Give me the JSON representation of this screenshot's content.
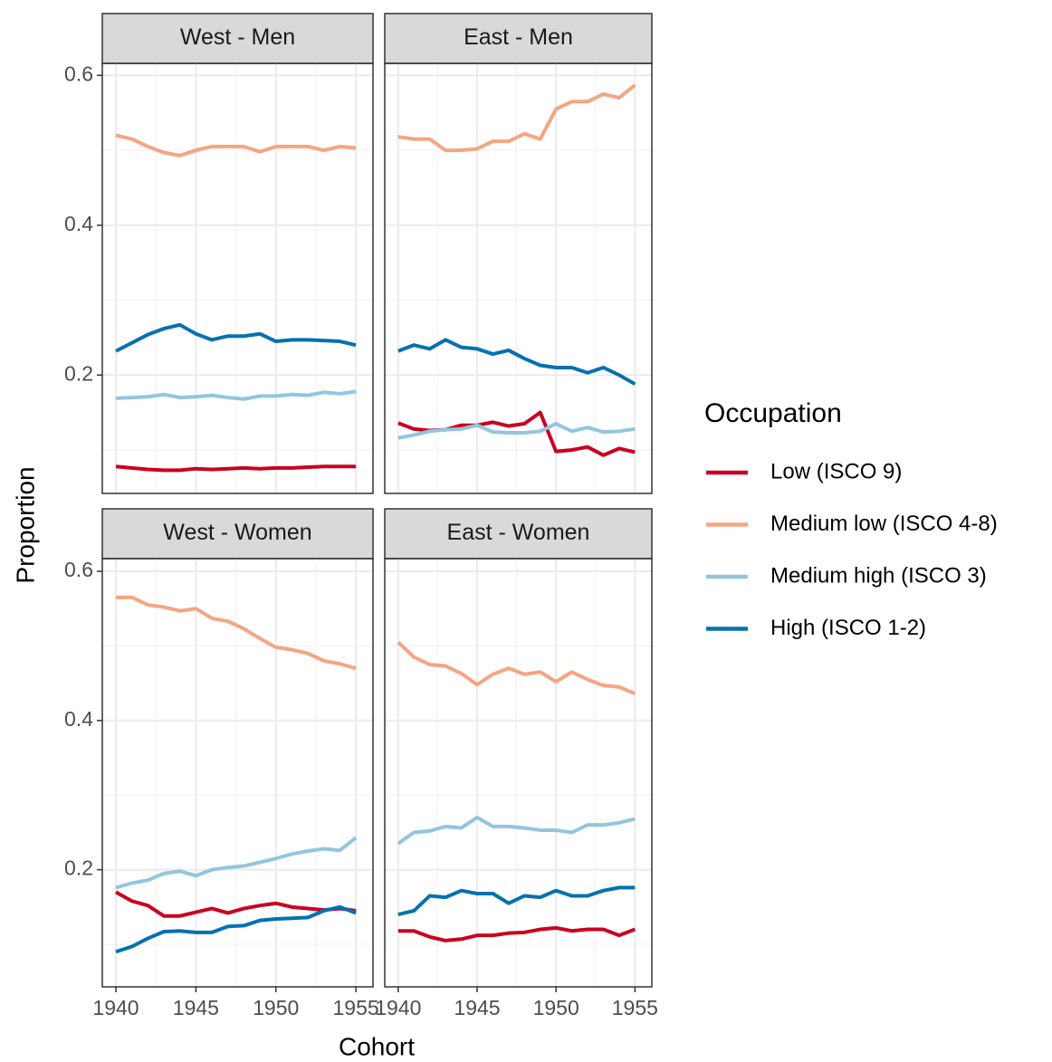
{
  "ylabel": "Proportion",
  "xlabel": "Cohort",
  "legend_title": "Occupation",
  "chart_data": [
    {
      "type": "line",
      "title": "West - Men",
      "x": [
        1940,
        1941,
        1942,
        1943,
        1944,
        1945,
        1946,
        1947,
        1948,
        1949,
        1950,
        1951,
        1952,
        1953,
        1954,
        1955
      ],
      "series": [
        {
          "name": "Low (ISCO 9)",
          "color": "#ca0020",
          "values": [
            0.078,
            0.076,
            0.074,
            0.073,
            0.073,
            0.075,
            0.074,
            0.075,
            0.076,
            0.075,
            0.076,
            0.076,
            0.077,
            0.078,
            0.078,
            0.078
          ]
        },
        {
          "name": "Medium low (ISCO 4-8)",
          "color": "#f4a582",
          "values": [
            0.52,
            0.515,
            0.505,
            0.497,
            0.493,
            0.5,
            0.505,
            0.505,
            0.505,
            0.498,
            0.505,
            0.505,
            0.505,
            0.5,
            0.505,
            0.503
          ]
        },
        {
          "name": "Medium high (ISCO 3)",
          "color": "#92c5de",
          "values": [
            0.169,
            0.17,
            0.171,
            0.174,
            0.17,
            0.171,
            0.173,
            0.17,
            0.168,
            0.172,
            0.172,
            0.174,
            0.173,
            0.177,
            0.175,
            0.178
          ]
        },
        {
          "name": "High (ISCO 1-2)",
          "color": "#0571b0",
          "values": [
            0.232,
            0.243,
            0.254,
            0.262,
            0.267,
            0.255,
            0.247,
            0.252,
            0.252,
            0.255,
            0.245,
            0.247,
            0.247,
            0.246,
            0.245,
            0.24
          ]
        }
      ],
      "xlim": [
        1939.15,
        1956.07
      ],
      "ylim": [
        0.042,
        0.616
      ],
      "xticks": [
        1940,
        1945,
        1950,
        1955
      ],
      "yticks": [
        0.2,
        0.4,
        0.6
      ],
      "xminor": [
        1942.5,
        1947.5,
        1952.5
      ],
      "yminor": [
        0.1,
        0.3,
        0.5
      ],
      "grid": true
    },
    {
      "type": "line",
      "title": "East - Men",
      "x": [
        1940,
        1941,
        1942,
        1943,
        1944,
        1945,
        1946,
        1947,
        1948,
        1949,
        1950,
        1951,
        1952,
        1953,
        1954,
        1955
      ],
      "series": [
        {
          "name": "Low (ISCO 9)",
          "color": "#ca0020",
          "values": [
            0.136,
            0.128,
            0.126,
            0.127,
            0.133,
            0.133,
            0.137,
            0.132,
            0.135,
            0.15,
            0.098,
            0.1,
            0.104,
            0.093,
            0.102,
            0.097
          ]
        },
        {
          "name": "Medium low (ISCO 4-8)",
          "color": "#f4a582",
          "values": [
            0.518,
            0.515,
            0.515,
            0.5,
            0.5,
            0.502,
            0.512,
            0.512,
            0.522,
            0.515,
            0.555,
            0.565,
            0.565,
            0.575,
            0.57,
            0.587
          ]
        },
        {
          "name": "Medium high (ISCO 3)",
          "color": "#92c5de",
          "values": [
            0.116,
            0.12,
            0.125,
            0.127,
            0.128,
            0.133,
            0.124,
            0.123,
            0.123,
            0.125,
            0.135,
            0.125,
            0.13,
            0.124,
            0.125,
            0.128
          ]
        },
        {
          "name": "High (ISCO 1-2)",
          "color": "#0571b0",
          "values": [
            0.232,
            0.24,
            0.235,
            0.247,
            0.237,
            0.235,
            0.228,
            0.233,
            0.222,
            0.213,
            0.21,
            0.21,
            0.203,
            0.21,
            0.2,
            0.188
          ]
        }
      ],
      "xlim": [
        1939.15,
        1956.07
      ],
      "ylim": [
        0.042,
        0.616
      ],
      "xticks": [
        1940,
        1945,
        1950,
        1955
      ],
      "yticks": [
        0.2,
        0.4,
        0.6
      ],
      "xminor": [
        1942.5,
        1947.5,
        1952.5
      ],
      "yminor": [
        0.1,
        0.3,
        0.5
      ],
      "grid": true
    },
    {
      "type": "line",
      "title": "West - Women",
      "x": [
        1940,
        1941,
        1942,
        1943,
        1944,
        1945,
        1946,
        1947,
        1948,
        1949,
        1950,
        1951,
        1952,
        1953,
        1954,
        1955
      ],
      "series": [
        {
          "name": "Low (ISCO 9)",
          "color": "#ca0020",
          "values": [
            0.17,
            0.158,
            0.152,
            0.138,
            0.138,
            0.143,
            0.148,
            0.142,
            0.148,
            0.152,
            0.155,
            0.15,
            0.148,
            0.146,
            0.148,
            0.145
          ]
        },
        {
          "name": "Medium low (ISCO 4-8)",
          "color": "#f4a582",
          "values": [
            0.565,
            0.565,
            0.555,
            0.552,
            0.547,
            0.55,
            0.537,
            0.533,
            0.523,
            0.51,
            0.498,
            0.495,
            0.49,
            0.48,
            0.476,
            0.47
          ]
        },
        {
          "name": "Medium high (ISCO 3)",
          "color": "#92c5de",
          "values": [
            0.176,
            0.182,
            0.186,
            0.195,
            0.198,
            0.192,
            0.2,
            0.203,
            0.205,
            0.21,
            0.215,
            0.221,
            0.225,
            0.228,
            0.226,
            0.243
          ]
        },
        {
          "name": "High (ISCO 1-2)",
          "color": "#0571b0",
          "values": [
            0.09,
            0.097,
            0.108,
            0.117,
            0.118,
            0.116,
            0.116,
            0.124,
            0.125,
            0.132,
            0.134,
            0.135,
            0.136,
            0.145,
            0.15,
            0.142
          ]
        }
      ],
      "xlim": [
        1939.15,
        1956.07
      ],
      "ylim": [
        0.043,
        0.617
      ],
      "xticks": [
        1940,
        1945,
        1950,
        1955
      ],
      "yticks": [
        0.2,
        0.4,
        0.6
      ],
      "xminor": [
        1942.5,
        1947.5,
        1952.5
      ],
      "yminor": [
        0.1,
        0.3,
        0.5
      ],
      "grid": true
    },
    {
      "type": "line",
      "title": "East - Women",
      "x": [
        1940,
        1941,
        1942,
        1943,
        1944,
        1945,
        1946,
        1947,
        1948,
        1949,
        1950,
        1951,
        1952,
        1953,
        1954,
        1955
      ],
      "series": [
        {
          "name": "Low (ISCO 9)",
          "color": "#ca0020",
          "values": [
            0.118,
            0.118,
            0.11,
            0.105,
            0.107,
            0.112,
            0.112,
            0.115,
            0.116,
            0.12,
            0.122,
            0.118,
            0.12,
            0.12,
            0.112,
            0.12
          ]
        },
        {
          "name": "Medium low (ISCO 4-8)",
          "color": "#f4a582",
          "values": [
            0.505,
            0.485,
            0.475,
            0.473,
            0.463,
            0.448,
            0.462,
            0.47,
            0.462,
            0.465,
            0.452,
            0.465,
            0.455,
            0.447,
            0.445,
            0.436
          ]
        },
        {
          "name": "Medium high (ISCO 3)",
          "color": "#92c5de",
          "values": [
            0.235,
            0.25,
            0.252,
            0.258,
            0.256,
            0.27,
            0.258,
            0.258,
            0.256,
            0.253,
            0.253,
            0.25,
            0.26,
            0.26,
            0.263,
            0.268
          ]
        },
        {
          "name": "High (ISCO 1-2)",
          "color": "#0571b0",
          "values": [
            0.14,
            0.145,
            0.165,
            0.163,
            0.172,
            0.168,
            0.168,
            0.155,
            0.165,
            0.163,
            0.172,
            0.165,
            0.165,
            0.172,
            0.176,
            0.176
          ]
        }
      ],
      "xlim": [
        1939.15,
        1956.07
      ],
      "ylim": [
        0.043,
        0.617
      ],
      "xticks": [
        1940,
        1945,
        1950,
        1955
      ],
      "yticks": [
        0.2,
        0.4,
        0.6
      ],
      "xminor": [
        1942.5,
        1947.5,
        1952.5
      ],
      "yminor": [
        0.1,
        0.3,
        0.5
      ],
      "grid": true
    }
  ]
}
